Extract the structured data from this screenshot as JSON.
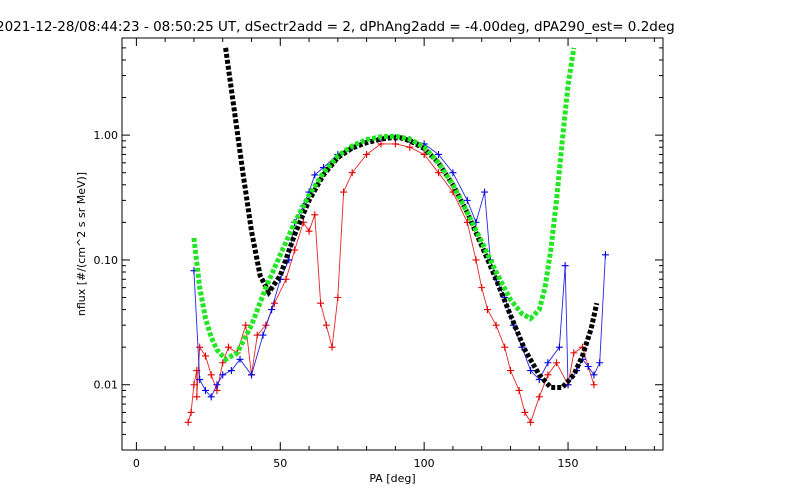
{
  "chart_data": {
    "type": "line",
    "title": "2021-12-28/08:44:23 - 08:50:25 UT, dSectr2add = 2, dPhAng2add = -4.00deg, dPA290_est=   0.2deg",
    "xlabel": "PA [deg]",
    "ylabel": "nflux [#/(cm^2 s sr MeV)]",
    "xlim": [
      -5,
      183
    ],
    "ylim": [
      0.003,
      6.0
    ],
    "yscale": "log",
    "x_ticks": [
      0,
      50,
      100,
      150
    ],
    "x_tick_labels": [
      "0",
      "50",
      "100",
      "150"
    ],
    "y_ticks": [
      0.01,
      0.1,
      1.0
    ],
    "y_tick_labels": [
      "0.01",
      "0.10",
      "1.00"
    ],
    "grid": false,
    "colors": {
      "red_series": "#e00000",
      "blue_series": "#0000e0",
      "black_fit": "#000000",
      "green_fit": "#22e622"
    },
    "series": [
      {
        "color": "black",
        "style": "thick-dashed",
        "x": [
          31,
          34,
          37,
          40,
          43,
          46,
          50,
          55,
          60,
          65,
          70,
          75,
          80,
          85,
          88,
          90,
          92,
          95,
          100,
          105,
          110,
          115,
          120,
          125,
          130,
          135,
          140,
          144,
          148,
          152,
          155,
          158,
          160
        ],
        "y": [
          5.0,
          1.6,
          0.5,
          0.17,
          0.075,
          0.055,
          0.075,
          0.16,
          0.3,
          0.48,
          0.66,
          0.79,
          0.87,
          0.93,
          0.95,
          0.95,
          0.95,
          0.9,
          0.78,
          0.6,
          0.4,
          0.24,
          0.13,
          0.07,
          0.036,
          0.019,
          0.012,
          0.0095,
          0.0095,
          0.012,
          0.017,
          0.028,
          0.045
        ]
      },
      {
        "color": "green",
        "style": "thick-dashed",
        "x": [
          20,
          22,
          24,
          26,
          28,
          31,
          35,
          40,
          45,
          50,
          55,
          60,
          65,
          70,
          75,
          80,
          85,
          90,
          95,
          100,
          105,
          110,
          115,
          120,
          125,
          130,
          134,
          137,
          140,
          142,
          144,
          146,
          148,
          150,
          152
        ],
        "y": [
          0.15,
          0.06,
          0.034,
          0.024,
          0.019,
          0.016,
          0.018,
          0.03,
          0.06,
          0.11,
          0.2,
          0.33,
          0.5,
          0.68,
          0.82,
          0.92,
          0.97,
          0.98,
          0.93,
          0.8,
          0.6,
          0.4,
          0.24,
          0.14,
          0.08,
          0.048,
          0.037,
          0.034,
          0.04,
          0.06,
          0.12,
          0.3,
          0.9,
          2.5,
          5.0
        ]
      }
    ],
    "red_markers": [
      [
        18,
        0.005
      ],
      [
        19,
        0.006
      ],
      [
        20,
        0.01
      ],
      [
        21,
        0.013
      ],
      [
        22,
        0.02
      ],
      [
        21,
        0.008
      ],
      [
        24,
        0.017
      ],
      [
        26,
        0.012
      ],
      [
        28,
        0.009
      ],
      [
        30,
        0.015
      ],
      [
        32,
        0.02
      ],
      [
        35,
        0.018
      ],
      [
        38,
        0.03
      ],
      [
        40,
        0.012
      ],
      [
        42,
        0.025
      ],
      [
        45,
        0.03
      ],
      [
        48,
        0.045
      ],
      [
        52,
        0.07
      ],
      [
        55,
        0.12
      ],
      [
        58,
        0.2
      ],
      [
        60,
        0.17
      ],
      [
        62,
        0.23
      ],
      [
        64,
        0.045
      ],
      [
        66,
        0.03
      ],
      [
        68,
        0.02
      ],
      [
        70,
        0.05
      ],
      [
        72,
        0.35
      ],
      [
        75,
        0.5
      ],
      [
        80,
        0.7
      ],
      [
        85,
        0.85
      ],
      [
        90,
        0.85
      ],
      [
        95,
        0.8
      ],
      [
        100,
        0.7
      ],
      [
        105,
        0.5
      ],
      [
        110,
        0.35
      ],
      [
        115,
        0.2
      ],
      [
        118,
        0.1
      ],
      [
        120,
        0.06
      ],
      [
        122,
        0.04
      ],
      [
        125,
        0.03
      ],
      [
        128,
        0.02
      ],
      [
        130,
        0.013
      ],
      [
        133,
        0.009
      ],
      [
        135,
        0.006
      ],
      [
        137,
        0.005
      ],
      [
        140,
        0.008
      ],
      [
        143,
        0.012
      ],
      [
        146,
        0.015
      ],
      [
        150,
        0.01
      ],
      [
        152,
        0.018
      ],
      [
        155,
        0.02
      ],
      [
        157,
        0.014
      ],
      [
        159,
        0.01
      ]
    ],
    "blue_markers": [
      [
        20,
        0.082
      ],
      [
        22,
        0.011
      ],
      [
        24,
        0.009
      ],
      [
        26,
        0.008
      ],
      [
        28,
        0.01
      ],
      [
        30,
        0.012
      ],
      [
        33,
        0.013
      ],
      [
        36,
        0.016
      ],
      [
        40,
        0.012
      ],
      [
        44,
        0.025
      ],
      [
        47,
        0.04
      ],
      [
        50,
        0.07
      ],
      [
        53,
        0.1
      ],
      [
        55,
        0.2
      ],
      [
        58,
        0.27
      ],
      [
        60,
        0.35
      ],
      [
        62,
        0.48
      ],
      [
        65,
        0.55
      ],
      [
        70,
        0.7
      ],
      [
        75,
        0.8
      ],
      [
        80,
        0.9
      ],
      [
        85,
        0.95
      ],
      [
        90,
        0.95
      ],
      [
        95,
        0.92
      ],
      [
        100,
        0.85
      ],
      [
        105,
        0.7
      ],
      [
        110,
        0.5
      ],
      [
        115,
        0.3
      ],
      [
        118,
        0.2
      ],
      [
        121,
        0.35
      ],
      [
        123,
        0.1
      ],
      [
        125,
        0.07
      ],
      [
        128,
        0.05
      ],
      [
        131,
        0.03
      ],
      [
        134,
        0.02
      ],
      [
        137,
        0.013
      ],
      [
        140,
        0.011
      ],
      [
        143,
        0.015
      ],
      [
        147,
        0.02
      ],
      [
        149,
        0.09
      ],
      [
        150,
        0.01
      ],
      [
        153,
        0.013
      ],
      [
        155,
        0.016
      ],
      [
        157,
        0.014
      ],
      [
        159,
        0.012
      ],
      [
        161,
        0.015
      ],
      [
        163,
        0.11
      ]
    ]
  }
}
